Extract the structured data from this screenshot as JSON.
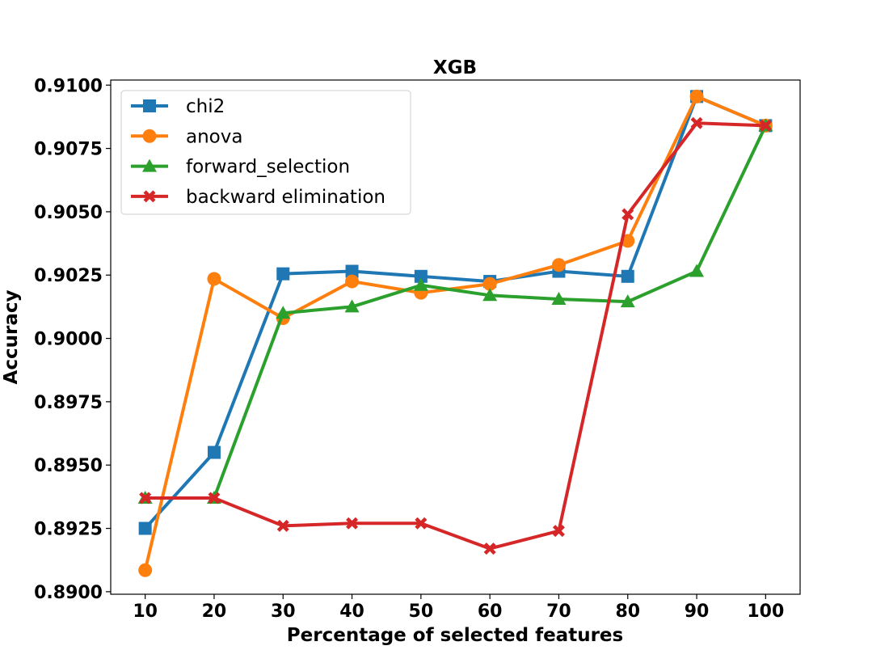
{
  "chart_data": {
    "type": "line",
    "title": "XGB",
    "xlabel": "Percentage of selected features",
    "ylabel": "Accuracy",
    "x": [
      10,
      20,
      30,
      40,
      50,
      60,
      70,
      80,
      90,
      100
    ],
    "xticks": [
      "10",
      "20",
      "30",
      "40",
      "50",
      "60",
      "70",
      "80",
      "90",
      "100"
    ],
    "xlim": [
      5,
      105
    ],
    "yticks": [
      "0.8900",
      "0.8925",
      "0.8950",
      "0.8975",
      "0.9000",
      "0.9025",
      "0.9050",
      "0.9075",
      "0.9100"
    ],
    "ylim": [
      0.8899,
      0.9102
    ],
    "grid": false,
    "legend_position": "upper-left",
    "series": [
      {
        "name": "chi2",
        "color": "#1f77b4",
        "marker": "square",
        "values": [
          0.8925,
          0.8955,
          0.90255,
          0.90265,
          0.90245,
          0.90225,
          0.90265,
          0.90245,
          0.90955,
          0.9084
        ]
      },
      {
        "name": "anova",
        "color": "#ff7f0e",
        "marker": "circle",
        "values": [
          0.89085,
          0.90235,
          0.9008,
          0.90225,
          0.9018,
          0.90215,
          0.9029,
          0.90385,
          0.90955,
          0.9084
        ]
      },
      {
        "name": "forward_selection",
        "color": "#2ca02c",
        "marker": "triangle",
        "values": [
          0.8937,
          0.8937,
          0.901,
          0.90125,
          0.9021,
          0.9017,
          0.90155,
          0.90145,
          0.90265,
          0.9084
        ]
      },
      {
        "name": "backward elimination",
        "color": "#d62728",
        "marker": "x",
        "values": [
          0.8937,
          0.8937,
          0.8926,
          0.8927,
          0.8927,
          0.8917,
          0.8924,
          0.9049,
          0.9085,
          0.9084
        ]
      }
    ]
  }
}
